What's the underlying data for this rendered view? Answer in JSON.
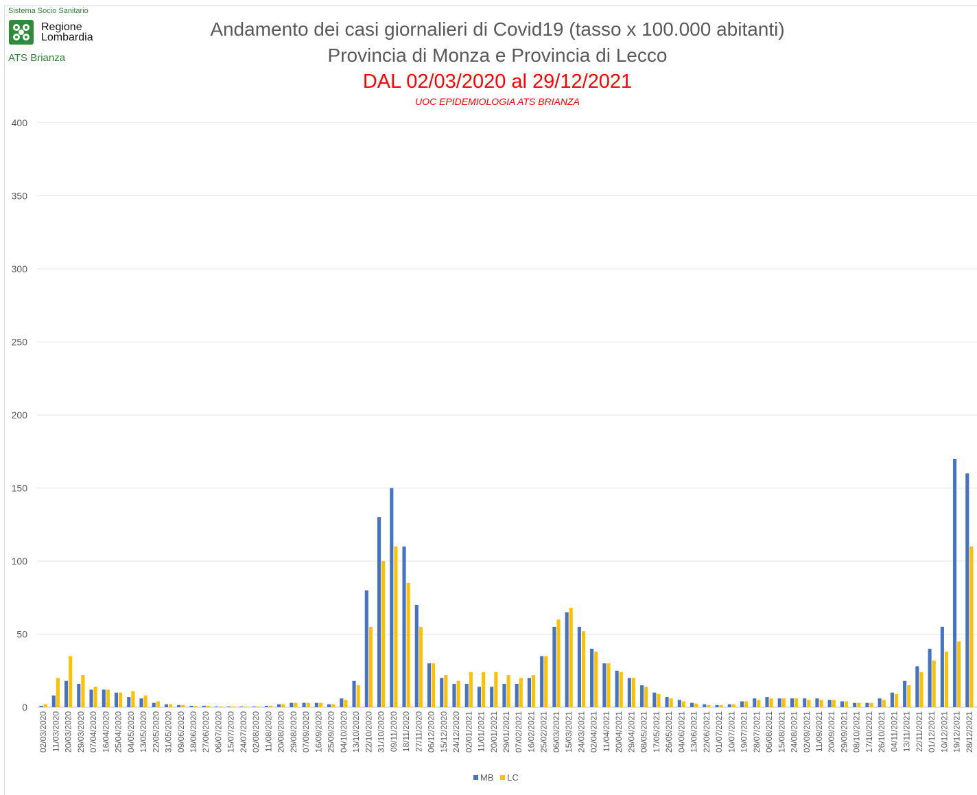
{
  "logo": {
    "top_text": "Sistema Socio Sanitario",
    "name_line1": "Regione",
    "name_line2": "Lombardia",
    "bottom_text": "ATS Brianza",
    "icon": "regione-lombardia-rosa-camuna-icon",
    "color": "#2e8b3a"
  },
  "chart_data": {
    "type": "bar",
    "title": "Andamento dei casi giornalieri di Covid19 (tasso x 100.000 abitanti)",
    "subtitle": "Provincia di Monza e Provincia di Lecco",
    "period": "DAL 02/03/2020 al 29/12/2021",
    "source": "UOC EPIDEMIOLOGIA ATS BRIANZA",
    "xlabel": "",
    "ylabel": "",
    "ylim": [
      0,
      400
    ],
    "yticks": [
      0,
      50,
      100,
      150,
      200,
      250,
      300,
      350,
      400
    ],
    "grid": true,
    "legend": "bottom",
    "categories": [
      "02/03/2020",
      "11/03/2020",
      "20/03/2020",
      "29/03/2020",
      "07/04/2020",
      "16/04/2020",
      "25/04/2020",
      "04/05/2020",
      "13/05/2020",
      "22/05/2020",
      "31/05/2020",
      "09/06/2020",
      "18/06/2020",
      "27/06/2020",
      "06/07/2020",
      "15/07/2020",
      "24/07/2020",
      "02/08/2020",
      "11/08/2020",
      "20/08/2020",
      "29/08/2020",
      "07/09/2020",
      "16/09/2020",
      "25/09/2020",
      "04/10/2020",
      "13/10/2020",
      "22/10/2020",
      "31/10/2020",
      "09/11/2020",
      "18/11/2020",
      "27/11/2020",
      "06/12/2020",
      "15/12/2020",
      "24/12/2020",
      "02/01/2021",
      "11/01/2021",
      "20/01/2021",
      "29/01/2021",
      "07/02/2021",
      "16/02/2021",
      "25/02/2021",
      "06/03/2021",
      "15/03/2021",
      "24/03/2021",
      "02/04/2021",
      "11/04/2021",
      "20/04/2021",
      "29/04/2021",
      "08/05/2021",
      "17/05/2021",
      "26/05/2021",
      "04/06/2021",
      "13/06/2021",
      "22/06/2021",
      "01/07/2021",
      "10/07/2021",
      "19/07/2021",
      "28/07/2021",
      "06/08/2021",
      "15/08/2021",
      "24/08/2021",
      "02/09/2021",
      "11/09/2021",
      "20/09/2021",
      "29/09/2021",
      "08/10/2021",
      "17/10/2021",
      "26/10/2021",
      "04/11/2021",
      "13/11/2021",
      "22/11/2021",
      "01/12/2021",
      "10/12/2021",
      "19/12/2021",
      "28/12/2021"
    ],
    "series": [
      {
        "name": "MB",
        "color": "#4472c4",
        "values": [
          1,
          8,
          18,
          16,
          12,
          12,
          10,
          7,
          6,
          3,
          2,
          1.5,
          1,
          1,
          0.5,
          0.5,
          0.5,
          0.5,
          1,
          2,
          3,
          3,
          3,
          2,
          6,
          18,
          80,
          130,
          150,
          110,
          70,
          30,
          20,
          16,
          16,
          14,
          14,
          16,
          16,
          20,
          35,
          55,
          65,
          55,
          40,
          30,
          25,
          20,
          15,
          10,
          7,
          5,
          3,
          2,
          1.5,
          2,
          4,
          6,
          7,
          6,
          6,
          6,
          6,
          5,
          4,
          3,
          3,
          6,
          10,
          18,
          28,
          40,
          55,
          170,
          160
        ]
      },
      {
        "name": "LC",
        "color": "#ffc000",
        "values": [
          2,
          20,
          35,
          22,
          14,
          12,
          10,
          11,
          8,
          4,
          2,
          1.5,
          1,
          1,
          0.5,
          0.5,
          0.5,
          0.5,
          1,
          2,
          3,
          3,
          3,
          2,
          5,
          15,
          55,
          100,
          110,
          85,
          55,
          30,
          22,
          18,
          24,
          24,
          24,
          22,
          20,
          22,
          35,
          60,
          68,
          52,
          38,
          30,
          24,
          20,
          14,
          9,
          6,
          4,
          2.5,
          1.5,
          1.5,
          2,
          4,
          5,
          6,
          6,
          6,
          5,
          5,
          5,
          4,
          3,
          3,
          5,
          9,
          15,
          24,
          32,
          38,
          45,
          110
        ]
      }
    ]
  }
}
